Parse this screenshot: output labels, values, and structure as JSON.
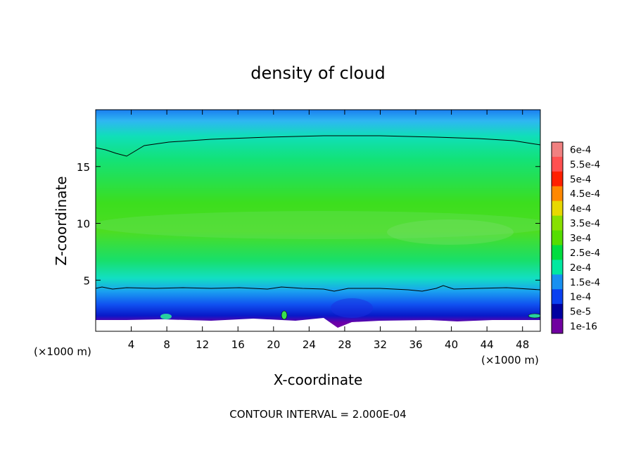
{
  "chart_data": {
    "type": "heatmap",
    "title": "density of cloud",
    "xlabel": "X-coordinate",
    "ylabel": "Z-coordinate",
    "x_unit": "(×1000 m)",
    "y_unit": "(×1000 m)",
    "xlim": [
      0,
      50
    ],
    "ylim": [
      0.5,
      20
    ],
    "x_ticks": [
      4,
      8,
      12,
      16,
      20,
      24,
      28,
      32,
      36,
      40,
      44,
      48
    ],
    "y_ticks": [
      5,
      10,
      15
    ],
    "footnote": "CONTOUR INTERVAL = 2.000E-04",
    "colorbar": {
      "levels": [
        "6e-4",
        "5.5e-4",
        "5e-4",
        "4.5e-4",
        "4e-4",
        "3.5e-4",
        "3e-4",
        "2.5e-4",
        "2e-4",
        "1.5e-4",
        "1e-4",
        "5e-5",
        "1e-16"
      ],
      "colors": [
        "#f08080",
        "#ff5050",
        "#ff2000",
        "#ff8800",
        "#e8d800",
        "#88e000",
        "#55dd00",
        "#00dd40",
        "#00e8a0",
        "#1890f0",
        "#0a40f0",
        "#0000a0",
        "#7000a0"
      ]
    },
    "vertical_profile": [
      {
        "z": 1.0,
        "density": 1e-08
      },
      {
        "z": 1.5,
        "density": 4e-05
      },
      {
        "z": 2.5,
        "density": 0.0001
      },
      {
        "z": 4.0,
        "density": 0.00018
      },
      {
        "z": 6.0,
        "density": 0.00028
      },
      {
        "z": 10.0,
        "density": 0.00032
      },
      {
        "z": 14.0,
        "density": 0.00026
      },
      {
        "z": 17.0,
        "density": 0.0002
      },
      {
        "z": 19.5,
        "density": 0.00012
      }
    ]
  }
}
